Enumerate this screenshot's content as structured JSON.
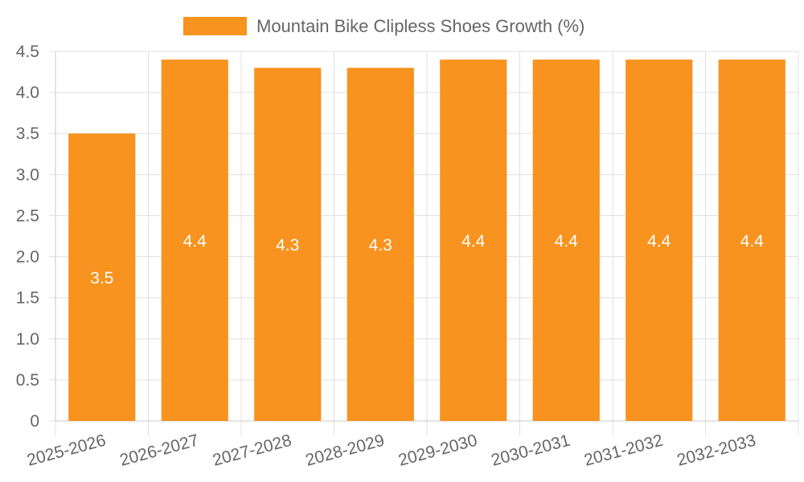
{
  "chart_data": {
    "type": "bar",
    "categories": [
      "2025-2026",
      "2026-2027",
      "2027-2028",
      "2028-2029",
      "2029-2030",
      "2030-2031",
      "2031-2032",
      "2032-2033"
    ],
    "series": [
      {
        "name": "Mountain Bike Clipless Shoes Growth (%)",
        "values": [
          3.5,
          4.4,
          4.3,
          4.3,
          4.4,
          4.4,
          4.4,
          4.4
        ],
        "color": "#f7931e"
      }
    ],
    "ylim": [
      0,
      4.5
    ],
    "yticks": [
      "0",
      "0.5",
      "1.0",
      "1.5",
      "2.0",
      "2.5",
      "3.0",
      "3.5",
      "4.0",
      "4.5"
    ],
    "ytick_values": [
      0,
      0.5,
      1.0,
      1.5,
      2.0,
      2.5,
      3.0,
      3.5,
      4.0,
      4.5
    ],
    "data_labels": [
      "3.5",
      "4.4",
      "4.3",
      "4.3",
      "4.4",
      "4.4",
      "4.4",
      "4.4"
    ],
    "grid": true,
    "legend_position": "top-center",
    "xlabel_rotation": "angled"
  }
}
